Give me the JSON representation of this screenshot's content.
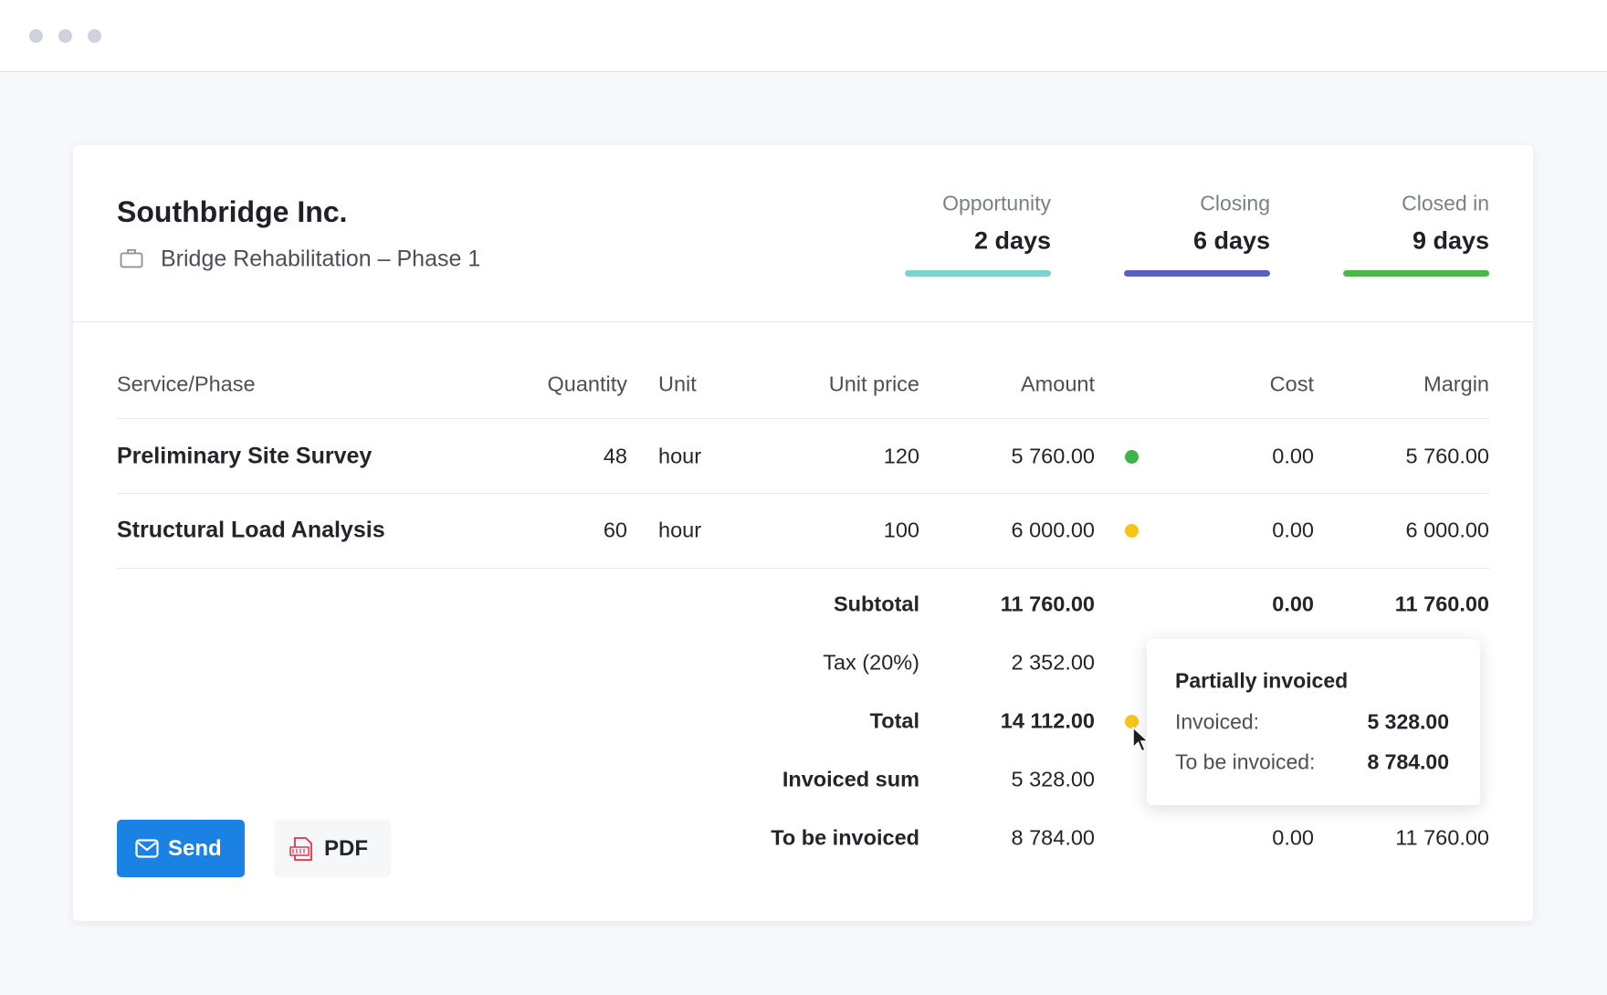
{
  "header": {
    "title": "Southbridge Inc.",
    "project": "Bridge Rehabilitation – Phase 1"
  },
  "stages": [
    {
      "label": "Opportunity",
      "value": "2 days",
      "color": "#7fd3cd"
    },
    {
      "label": "Closing",
      "value": "6 days",
      "color": "#5a60c0"
    },
    {
      "label": "Closed in",
      "value": "9 days",
      "color": "#4cb748"
    }
  ],
  "table": {
    "columns": [
      "Service/Phase",
      "Quantity",
      "Unit",
      "Unit price",
      "Amount",
      "Cost",
      "Margin"
    ],
    "rows": [
      {
        "service": "Preliminary Site Survey",
        "quantity": 48,
        "unit": "hour",
        "unit_price": 120,
        "amount": "5 760.00",
        "status_color": "#3db34a",
        "cost": "0.00",
        "margin": "5 760.00"
      },
      {
        "service": "Structural Load Analysis",
        "quantity": 60,
        "unit": "hour",
        "unit_price": 100,
        "amount": "6 000.00",
        "status_color": "#f5c518",
        "cost": "0.00",
        "margin": "6 000.00"
      }
    ]
  },
  "summary": [
    {
      "label": "Subtotal",
      "amount": "11 760.00",
      "cost": "0.00",
      "margin": "11 760.00"
    },
    {
      "label": "Tax (20%)",
      "amount": "2 352.00"
    },
    {
      "label": "Total",
      "amount": "14 112.00",
      "status_color": "#f5c518"
    },
    {
      "label": "Invoiced sum",
      "amount": "5 328.00"
    },
    {
      "label": "To be invoiced",
      "amount": "8 784.00",
      "cost": "0.00",
      "margin": "11 760.00"
    }
  ],
  "tooltip": {
    "title": "Partially invoiced",
    "rows": [
      {
        "label": "Invoiced:",
        "value": "5 328.00"
      },
      {
        "label": "To be invoiced:",
        "value": "8 784.00"
      }
    ]
  },
  "buttons": [
    "Send",
    "PDF"
  ]
}
